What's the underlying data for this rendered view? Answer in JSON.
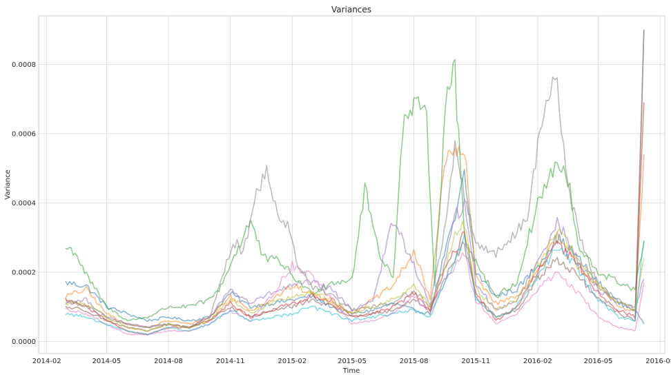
{
  "chart_data": {
    "type": "line",
    "title": "Variances",
    "xlabel": "Time",
    "ylabel": "Variance",
    "x_ticks": [
      "2014-02",
      "2014-05",
      "2014-08",
      "2014-11",
      "2015-02",
      "2015-05",
      "2015-08",
      "2015-11",
      "2016-02",
      "2016-05",
      "2016-08"
    ],
    "y_ticks": [
      "0.0000",
      "0.0002",
      "0.0004",
      "0.0006",
      "0.0008"
    ],
    "xlim": [
      "2014-01-20",
      "2016-08-08"
    ],
    "ylim": [
      -3.5e-05,
      0.00094
    ],
    "grid": true,
    "legend": "none",
    "series": [
      {
        "color": "#1f77b4",
        "x": [
          "2014-03-01",
          "2014-04-01",
          "2014-05-01",
          "2014-06-01",
          "2014-07-01",
          "2014-08-01",
          "2014-09-01",
          "2014-10-01",
          "2014-11-01",
          "2014-12-01",
          "2015-01-01",
          "2015-02-01",
          "2015-03-01",
          "2015-04-01",
          "2015-05-01",
          "2015-06-01",
          "2015-07-01",
          "2015-08-01",
          "2015-08-25",
          "2015-09-15",
          "2015-10-01",
          "2015-10-15",
          "2015-11-01",
          "2015-12-01",
          "2016-01-01",
          "2016-02-01",
          "2016-03-01",
          "2016-04-01",
          "2016-05-01",
          "2016-06-01",
          "2016-06-25",
          "2016-07-08"
        ],
        "y": [
          0.00017,
          0.00016,
          0.0001,
          8e-05,
          6e-05,
          7e-05,
          6e-05,
          7e-05,
          0.00014,
          0.0001,
          0.00011,
          0.00012,
          0.00013,
          0.0001,
          8e-05,
          9e-05,
          0.00011,
          9e-05,
          8e-05,
          0.00025,
          0.00035,
          0.00048,
          0.0002,
          0.00013,
          0.00015,
          0.00022,
          0.0003,
          0.00024,
          0.00017,
          0.00011,
          9e-05,
          5e-05
        ]
      },
      {
        "color": "#ff7f0e",
        "x": [
          "2014-03-01",
          "2014-04-01",
          "2014-05-01",
          "2014-06-01",
          "2014-07-01",
          "2014-08-01",
          "2014-09-01",
          "2014-10-01",
          "2014-11-01",
          "2014-12-01",
          "2015-01-01",
          "2015-02-01",
          "2015-03-01",
          "2015-04-01",
          "2015-05-01",
          "2015-06-01",
          "2015-07-01",
          "2015-08-01",
          "2015-08-25",
          "2015-09-15",
          "2015-10-01",
          "2015-10-15",
          "2015-11-01",
          "2015-12-01",
          "2016-01-01",
          "2016-02-01",
          "2016-03-01",
          "2016-04-01",
          "2016-05-01",
          "2016-06-01",
          "2016-06-25",
          "2016-07-08"
        ],
        "y": [
          0.00013,
          0.00015,
          8e-05,
          5e-05,
          4e-05,
          6e-05,
          5e-05,
          7e-05,
          0.00013,
          9e-05,
          0.00012,
          0.00016,
          0.00014,
          0.00011,
          8e-05,
          0.00012,
          0.00016,
          0.00026,
          0.00012,
          0.00052,
          0.00054,
          0.00055,
          0.00019,
          0.00011,
          0.00013,
          0.0002,
          0.0003,
          0.00022,
          0.00016,
          0.0001,
          9e-05,
          0.00054
        ]
      },
      {
        "color": "#2ca02c",
        "x": [
          "2014-03-01",
          "2014-03-15",
          "2014-04-01",
          "2014-05-01",
          "2014-06-01",
          "2014-07-01",
          "2014-08-01",
          "2014-09-01",
          "2014-10-01",
          "2014-10-15",
          "2014-11-01",
          "2014-12-01",
          "2014-12-20",
          "2015-01-15",
          "2015-02-01",
          "2015-03-01",
          "2015-04-01",
          "2015-05-01",
          "2015-05-20",
          "2015-06-10",
          "2015-07-01",
          "2015-07-15",
          "2015-08-01",
          "2015-08-20",
          "2015-09-01",
          "2015-09-20",
          "2015-10-01",
          "2015-10-15",
          "2015-11-01",
          "2015-12-01",
          "2016-01-01",
          "2016-02-01",
          "2016-03-01",
          "2016-03-20",
          "2016-04-01",
          "2016-05-01",
          "2016-06-01",
          "2016-06-25",
          "2016-07-08"
        ],
        "y": [
          0.00027,
          0.00026,
          0.00019,
          0.0001,
          6e-05,
          7e-05,
          0.0001,
          0.0001,
          0.00012,
          0.00015,
          0.00022,
          0.00035,
          0.00024,
          0.00023,
          0.00019,
          0.00014,
          0.00017,
          0.00018,
          0.00044,
          0.00026,
          0.00018,
          0.00062,
          0.00068,
          0.00064,
          0.00017,
          0.00076,
          0.00077,
          0.00031,
          0.00023,
          0.00013,
          0.00017,
          0.0004,
          0.00052,
          0.00044,
          0.00027,
          0.0002,
          0.00017,
          0.00015,
          0.00029
        ]
      },
      {
        "color": "#d62728",
        "x": [
          "2014-03-01",
          "2014-04-01",
          "2014-05-01",
          "2014-06-01",
          "2014-07-01",
          "2014-08-01",
          "2014-09-01",
          "2014-10-01",
          "2014-11-01",
          "2014-12-01",
          "2015-01-01",
          "2015-02-01",
          "2015-03-01",
          "2015-04-01",
          "2015-05-01",
          "2015-06-01",
          "2015-07-01",
          "2015-08-01",
          "2015-08-25",
          "2015-09-15",
          "2015-10-01",
          "2015-10-15",
          "2015-11-01",
          "2015-12-01",
          "2016-01-01",
          "2016-02-01",
          "2016-03-01",
          "2016-04-01",
          "2016-05-01",
          "2016-06-01",
          "2016-06-25",
          "2016-07-08"
        ],
        "y": [
          0.00012,
          0.0001,
          6e-05,
          3e-05,
          2e-05,
          4e-05,
          4e-05,
          6e-05,
          0.00011,
          7e-05,
          9e-05,
          0.00011,
          0.00013,
          0.00012,
          7e-05,
          8e-05,
          0.0001,
          0.00014,
          9e-05,
          0.0002,
          0.00026,
          0.00032,
          0.00014,
          6e-05,
          0.0001,
          0.0002,
          0.00028,
          0.00022,
          0.00014,
          9e-05,
          7e-05,
          0.00069
        ]
      },
      {
        "color": "#9467bd",
        "x": [
          "2014-03-01",
          "2014-04-01",
          "2014-05-01",
          "2014-06-01",
          "2014-07-01",
          "2014-08-01",
          "2014-09-01",
          "2014-10-01",
          "2014-11-01",
          "2014-12-01",
          "2015-01-01",
          "2015-02-01",
          "2015-03-01",
          "2015-04-01",
          "2015-05-01",
          "2015-06-01",
          "2015-07-01",
          "2015-08-01",
          "2015-08-25",
          "2015-09-15",
          "2015-10-01",
          "2015-10-15",
          "2015-11-01",
          "2015-12-01",
          "2016-01-01",
          "2016-02-01",
          "2016-03-01",
          "2016-04-01",
          "2016-05-01",
          "2016-06-01",
          "2016-06-25",
          "2016-07-08"
        ],
        "y": [
          0.00011,
          0.00012,
          7e-05,
          5e-05,
          4e-05,
          5e-05,
          4e-05,
          7e-05,
          0.00015,
          0.00011,
          0.00014,
          0.00016,
          0.00017,
          0.00015,
          9e-05,
          0.00012,
          0.00035,
          0.00022,
          0.0001,
          0.00022,
          0.00036,
          0.00039,
          0.00017,
          9e-05,
          0.00012,
          0.00023,
          0.00035,
          0.00023,
          0.00015,
          0.00011,
          0.0001,
          0.00018
        ]
      },
      {
        "color": "#8c564b",
        "x": [
          "2014-03-01",
          "2014-04-01",
          "2014-05-01",
          "2014-06-01",
          "2014-07-01",
          "2014-08-01",
          "2014-09-01",
          "2014-10-01",
          "2014-11-01",
          "2014-12-01",
          "2015-01-01",
          "2015-02-01",
          "2015-03-01",
          "2015-04-01",
          "2015-05-01",
          "2015-06-01",
          "2015-07-01",
          "2015-08-01",
          "2015-08-25",
          "2015-09-15",
          "2015-10-01",
          "2015-10-15",
          "2015-11-01",
          "2015-12-01",
          "2016-01-01",
          "2016-02-01",
          "2016-03-01",
          "2016-04-01",
          "2016-05-01",
          "2016-06-01",
          "2016-06-25",
          "2016-07-08"
        ],
        "y": [
          0.0001,
          9e-05,
          6e-05,
          4e-05,
          3e-05,
          5e-05,
          4e-05,
          6e-05,
          0.0001,
          7e-05,
          9e-05,
          0.0001,
          0.00012,
          0.0001,
          7e-05,
          8e-05,
          9e-05,
          0.00012,
          9e-05,
          0.00018,
          0.00024,
          0.00028,
          0.00013,
          7e-05,
          9e-05,
          0.00018,
          0.00024,
          0.00019,
          0.00012,
          8e-05,
          6e-05,
          0.0009
        ]
      },
      {
        "color": "#e377c2",
        "x": [
          "2014-03-01",
          "2014-04-01",
          "2014-05-01",
          "2014-06-01",
          "2014-07-01",
          "2014-08-01",
          "2014-09-01",
          "2014-10-01",
          "2014-11-01",
          "2014-12-01",
          "2015-01-01",
          "2015-02-01",
          "2015-03-01",
          "2015-04-01",
          "2015-05-01",
          "2015-06-01",
          "2015-07-01",
          "2015-08-01",
          "2015-08-25",
          "2015-09-15",
          "2015-10-01",
          "2015-10-15",
          "2015-11-01",
          "2015-12-01",
          "2016-01-01",
          "2016-02-01",
          "2016-03-01",
          "2016-04-01",
          "2016-05-01",
          "2016-06-01",
          "2016-06-25",
          "2016-07-08"
        ],
        "y": [
          9e-05,
          8e-05,
          5e-05,
          2e-05,
          2e-05,
          3e-05,
          3e-05,
          5e-05,
          9e-05,
          6e-05,
          0.00013,
          0.00022,
          0.00019,
          0.00012,
          5e-05,
          6e-05,
          8e-05,
          0.00013,
          8e-05,
          0.00017,
          0.00022,
          0.00026,
          0.00012,
          5e-05,
          8e-05,
          0.00015,
          0.0002,
          0.00014,
          7e-05,
          4e-05,
          3e-05,
          0.00017
        ]
      },
      {
        "color": "#7f7f7f",
        "x": [
          "2014-03-01",
          "2014-04-01",
          "2014-05-01",
          "2014-06-01",
          "2014-07-01",
          "2014-08-01",
          "2014-09-01",
          "2014-10-01",
          "2014-10-20",
          "2014-11-05",
          "2014-11-20",
          "2014-12-10",
          "2014-12-25",
          "2015-01-10",
          "2015-01-25",
          "2015-02-10",
          "2015-03-01",
          "2015-04-01",
          "2015-05-01",
          "2015-06-01",
          "2015-07-01",
          "2015-08-01",
          "2015-08-25",
          "2015-09-15",
          "2015-10-01",
          "2015-10-15",
          "2015-11-01",
          "2015-12-01",
          "2016-01-01",
          "2016-01-20",
          "2016-02-01",
          "2016-02-20",
          "2016-03-01",
          "2016-03-20",
          "2016-04-01",
          "2016-05-01",
          "2016-06-01",
          "2016-06-25",
          "2016-07-08"
        ],
        "y": [
          0.00012,
          0.0001,
          7e-05,
          5e-05,
          4e-05,
          5e-05,
          4e-05,
          7e-05,
          0.00018,
          0.00029,
          0.00026,
          0.00043,
          0.00049,
          0.00038,
          0.00034,
          0.00022,
          0.00016,
          0.00013,
          9e-05,
          0.0001,
          0.00011,
          0.00015,
          0.0001,
          0.00032,
          0.00056,
          0.00042,
          0.00029,
          0.00025,
          0.00032,
          0.00038,
          0.00058,
          0.00073,
          0.00072,
          0.00042,
          0.00032,
          0.00016,
          0.00012,
          9e-05,
          0.0009
        ]
      },
      {
        "color": "#bcbd22",
        "x": [
          "2014-03-01",
          "2014-04-01",
          "2014-05-01",
          "2014-06-01",
          "2014-07-01",
          "2014-08-01",
          "2014-09-01",
          "2014-10-01",
          "2014-11-01",
          "2014-12-01",
          "2015-01-01",
          "2015-02-01",
          "2015-03-01",
          "2015-04-01",
          "2015-05-01",
          "2015-06-01",
          "2015-07-01",
          "2015-08-01",
          "2015-08-25",
          "2015-09-15",
          "2015-10-01",
          "2015-10-15",
          "2015-11-01",
          "2015-12-01",
          "2016-01-01",
          "2016-02-01",
          "2016-03-01",
          "2016-04-01",
          "2016-05-01",
          "2016-06-01",
          "2016-06-25",
          "2016-07-08"
        ],
        "y": [
          0.00011,
          0.00011,
          7e-05,
          4e-05,
          3e-05,
          5e-05,
          4e-05,
          6e-05,
          0.00012,
          8e-05,
          0.00011,
          0.00013,
          0.00014,
          0.00012,
          8e-05,
          0.0001,
          0.00012,
          0.00016,
          0.0001,
          0.00022,
          0.0003,
          0.00034,
          0.00015,
          9e-05,
          0.00012,
          0.00022,
          0.00032,
          0.00024,
          0.00016,
          0.00011,
          9e-05,
          0.00024
        ]
      },
      {
        "color": "#17becf",
        "x": [
          "2014-03-01",
          "2014-04-01",
          "2014-05-01",
          "2014-06-01",
          "2014-07-01",
          "2014-08-01",
          "2014-09-01",
          "2014-10-01",
          "2014-11-01",
          "2014-12-01",
          "2015-01-01",
          "2015-02-01",
          "2015-03-01",
          "2015-04-01",
          "2015-05-01",
          "2015-06-01",
          "2015-07-01",
          "2015-08-01",
          "2015-08-25",
          "2015-09-15",
          "2015-10-01",
          "2015-10-15",
          "2015-11-01",
          "2015-12-01",
          "2016-01-01",
          "2016-02-01",
          "2016-03-01",
          "2016-04-01",
          "2016-05-01",
          "2016-06-01",
          "2016-06-25",
          "2016-07-08"
        ],
        "y": [
          8e-05,
          7e-05,
          5e-05,
          3e-05,
          2e-05,
          4e-05,
          3e-05,
          5e-05,
          9e-05,
          6e-05,
          7e-05,
          8e-05,
          0.0001,
          8e-05,
          6e-05,
          7e-05,
          8e-05,
          9e-05,
          7e-05,
          0.00016,
          0.00024,
          0.0003,
          0.00012,
          7e-05,
          0.0001,
          0.00019,
          0.00027,
          0.00021,
          0.00012,
          7e-05,
          6e-05,
          0.00029
        ]
      }
    ]
  }
}
